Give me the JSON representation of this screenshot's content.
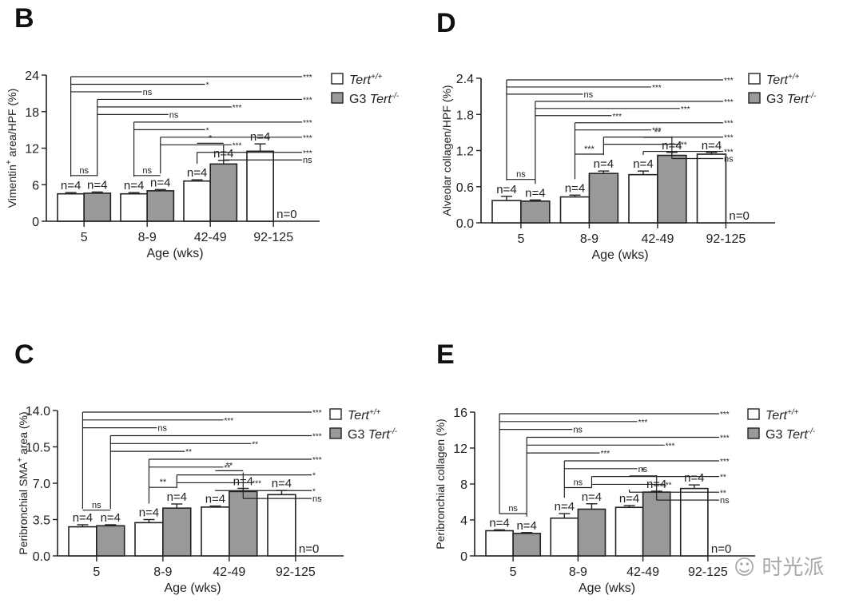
{
  "watermark": "时光派",
  "legend": {
    "wt": "Tert",
    "wt_sup": "+/+",
    "ko_prefix": "G3 ",
    "ko": "Tert",
    "ko_sup": "-/-"
  },
  "colors": {
    "wt": "#ffffff",
    "ko": "#999999",
    "stroke": "#222222"
  },
  "chart_data": [
    {
      "panel": "B",
      "type": "bar",
      "ylabel": "Vimentin+ area/HPF (%)",
      "ylabel_main": "Vimentin",
      "ylabel_sup": "+",
      "ylabel_rest": " area/HPF (%)",
      "xlabel": "Age (wks)",
      "categories": [
        "5",
        "8-9",
        "42-49",
        "92-125"
      ],
      "ylim": [
        0,
        24
      ],
      "yticks": [
        "0",
        "6",
        "12",
        "18",
        "24"
      ],
      "ytick_values": [
        0,
        6,
        12,
        18,
        24
      ],
      "series": [
        {
          "name": "Tert+/+",
          "values": [
            4.5,
            4.5,
            6.6,
            11.5
          ],
          "errors": [
            0.2,
            0.2,
            0.2,
            1.2
          ],
          "n": [
            "n=4",
            "n=4",
            "n=4",
            "n=4"
          ]
        },
        {
          "name": "G3 Tert-/-",
          "values": [
            4.6,
            5.0,
            9.4,
            null
          ],
          "errors": [
            0.2,
            0.2,
            0.6,
            null
          ],
          "n": [
            "n=4",
            "n=4",
            "n=4",
            "n=0"
          ]
        }
      ],
      "comparisons": [
        {
          "from": [
            0,
            0
          ],
          "to": [
            3,
            0
          ],
          "label": "***"
        },
        {
          "from": [
            0,
            0
          ],
          "to": [
            2,
            0
          ],
          "label": "*"
        },
        {
          "from": [
            0,
            0
          ],
          "to": [
            1,
            0
          ],
          "label": "ns"
        },
        {
          "from": [
            0,
            1
          ],
          "to": [
            3,
            0
          ],
          "label": "***"
        },
        {
          "from": [
            0,
            1
          ],
          "to": [
            2,
            1
          ],
          "label": "***"
        },
        {
          "from": [
            0,
            1
          ],
          "to": [
            1,
            1
          ],
          "label": "ns"
        },
        {
          "from": [
            1,
            0
          ],
          "to": [
            3,
            0
          ],
          "label": "***"
        },
        {
          "from": [
            1,
            0
          ],
          "to": [
            2,
            0
          ],
          "label": "*"
        },
        {
          "from": [
            1,
            1
          ],
          "to": [
            3,
            0
          ],
          "label": "***"
        },
        {
          "from": [
            1,
            1
          ],
          "to": [
            2,
            1
          ],
          "label": "***"
        },
        {
          "from": [
            2,
            0
          ],
          "to": [
            3,
            0
          ],
          "label": "***"
        },
        {
          "from": [
            2,
            1
          ],
          "to": [
            3,
            0
          ],
          "label": "ns"
        }
      ],
      "pair_comparisons": [
        {
          "group": 0,
          "label": "ns",
          "y": 7.5
        },
        {
          "group": 1,
          "label": "ns",
          "y": 7.5
        },
        {
          "group": 2,
          "label": "*",
          "y": 12.8
        }
      ]
    },
    {
      "panel": "D",
      "type": "bar",
      "ylabel": "Alveolar collagen/HPF (%)",
      "ylabel_main": "Alveolar collagen/HPF (%)",
      "ylabel_sup": "",
      "ylabel_rest": "",
      "xlabel": "Age (wks)",
      "categories": [
        "5",
        "8-9",
        "42-49",
        "92-125"
      ],
      "ylim": [
        0,
        2.4
      ],
      "yticks": [
        "0.0",
        "0.6",
        "1.2",
        "1.8",
        "2.4"
      ],
      "ytick_values": [
        0,
        0.6,
        1.2,
        1.8,
        2.4
      ],
      "series": [
        {
          "name": "Tert+/+",
          "values": [
            0.37,
            0.43,
            0.8,
            1.14
          ],
          "errors": [
            0.07,
            0.03,
            0.06,
            0.03
          ],
          "n": [
            "n=4",
            "n=4",
            "n=4",
            "n=4"
          ]
        },
        {
          "name": "G3 Tert-/-",
          "values": [
            0.36,
            0.82,
            1.12,
            null
          ],
          "errors": [
            0.02,
            0.04,
            0.05,
            null
          ],
          "n": [
            "n=4",
            "n=4",
            "n=4",
            "n=0"
          ]
        }
      ],
      "comparisons": [
        {
          "from": [
            0,
            0
          ],
          "to": [
            3,
            0
          ],
          "label": "***"
        },
        {
          "from": [
            0,
            0
          ],
          "to": [
            2,
            0
          ],
          "label": "***"
        },
        {
          "from": [
            0,
            0
          ],
          "to": [
            1,
            0
          ],
          "label": "ns"
        },
        {
          "from": [
            0,
            1
          ],
          "to": [
            3,
            0
          ],
          "label": "***"
        },
        {
          "from": [
            0,
            1
          ],
          "to": [
            2,
            1
          ],
          "label": "***"
        },
        {
          "from": [
            0,
            1
          ],
          "to": [
            1,
            1
          ],
          "label": "***"
        },
        {
          "from": [
            1,
            0
          ],
          "to": [
            3,
            0
          ],
          "label": "***"
        },
        {
          "from": [
            1,
            0
          ],
          "to": [
            2,
            0
          ],
          "label": "***"
        },
        {
          "from": [
            1,
            1
          ],
          "to": [
            3,
            0
          ],
          "label": "***"
        },
        {
          "from": [
            1,
            1
          ],
          "to": [
            2,
            1
          ],
          "label": "**"
        },
        {
          "from": [
            2,
            0
          ],
          "to": [
            3,
            0
          ],
          "label": "***"
        },
        {
          "from": [
            2,
            1
          ],
          "to": [
            3,
            0
          ],
          "label": "ns"
        }
      ],
      "pair_comparisons": [
        {
          "group": 0,
          "label": "ns",
          "y": 0.72
        },
        {
          "group": 1,
          "label": "***",
          "y": 1.14
        },
        {
          "group": 2,
          "label": "**",
          "y": 1.42
        }
      ]
    },
    {
      "panel": "C",
      "type": "bar",
      "ylabel": "Peribronchial SMA+ area (%)",
      "ylabel_main": "Peribronchial SMA",
      "ylabel_sup": "+",
      "ylabel_rest": " area (%)",
      "xlabel": "Age (wks)",
      "categories": [
        "5",
        "8-9",
        "42-49",
        "92-125"
      ],
      "ylim": [
        0,
        14
      ],
      "yticks": [
        "0.0",
        "3.5",
        "7.0",
        "10.5",
        "14.0"
      ],
      "ytick_values": [
        0,
        3.5,
        7,
        10.5,
        14
      ],
      "series": [
        {
          "name": "Tert+/+",
          "values": [
            2.8,
            3.2,
            4.7,
            5.9
          ],
          "errors": [
            0.2,
            0.3,
            0.1,
            0.4
          ],
          "n": [
            "n=4",
            "n=4",
            "n=4",
            "n=4"
          ]
        },
        {
          "name": "G3 Tert-/-",
          "values": [
            2.9,
            4.6,
            6.2,
            null
          ],
          "errors": [
            0.1,
            0.4,
            0.3,
            null
          ],
          "n": [
            "n=4",
            "n=4",
            "n=4",
            "n=0"
          ]
        }
      ],
      "comparisons": [
        {
          "from": [
            0,
            0
          ],
          "to": [
            3,
            0
          ],
          "label": "***"
        },
        {
          "from": [
            0,
            0
          ],
          "to": [
            2,
            0
          ],
          "label": "***"
        },
        {
          "from": [
            0,
            0
          ],
          "to": [
            1,
            0
          ],
          "label": "ns"
        },
        {
          "from": [
            0,
            1
          ],
          "to": [
            3,
            0
          ],
          "label": "***"
        },
        {
          "from": [
            0,
            1
          ],
          "to": [
            2,
            1
          ],
          "label": "**"
        },
        {
          "from": [
            0,
            1
          ],
          "to": [
            1,
            1
          ],
          "label": "**"
        },
        {
          "from": [
            1,
            0
          ],
          "to": [
            3,
            0
          ],
          "label": "***"
        },
        {
          "from": [
            1,
            0
          ],
          "to": [
            2,
            0
          ],
          "label": "**"
        },
        {
          "from": [
            1,
            1
          ],
          "to": [
            3,
            0
          ],
          "label": "*"
        },
        {
          "from": [
            1,
            1
          ],
          "to": [
            2,
            1
          ],
          "label": "***"
        },
        {
          "from": [
            2,
            0
          ],
          "to": [
            3,
            0
          ],
          "label": "*"
        },
        {
          "from": [
            2,
            1
          ],
          "to": [
            3,
            0
          ],
          "label": "ns"
        }
      ],
      "pair_comparisons": [
        {
          "group": 0,
          "label": "ns",
          "y": 4.4
        },
        {
          "group": 1,
          "label": "**",
          "y": 6.6
        },
        {
          "group": 2,
          "label": "**",
          "y": 8.2
        }
      ]
    },
    {
      "panel": "E",
      "type": "bar",
      "ylabel": "Peribronchial collagen (%)",
      "ylabel_main": "Peribronchial collagen (%)",
      "ylabel_sup": "",
      "ylabel_rest": "",
      "xlabel": "Age (wks)",
      "categories": [
        "5",
        "8-9",
        "42-49",
        "92-125"
      ],
      "ylim": [
        0,
        16
      ],
      "yticks": [
        "0",
        "4",
        "8",
        "12",
        "16"
      ],
      "ytick_values": [
        0,
        4,
        8,
        12,
        16
      ],
      "series": [
        {
          "name": "Tert+/+",
          "values": [
            2.8,
            4.2,
            5.4,
            7.5
          ],
          "errors": [
            0.1,
            0.5,
            0.2,
            0.4
          ],
          "n": [
            "n=4",
            "n=4",
            "n=4",
            "n=4"
          ]
        },
        {
          "name": "G3 Tert-/-",
          "values": [
            2.5,
            5.2,
            7.1,
            null
          ],
          "errors": [
            0.1,
            0.6,
            0.1,
            null
          ],
          "n": [
            "n=4",
            "n=4",
            "n=4",
            "n=0"
          ]
        }
      ],
      "comparisons": [
        {
          "from": [
            0,
            0
          ],
          "to": [
            3,
            0
          ],
          "label": "***"
        },
        {
          "from": [
            0,
            0
          ],
          "to": [
            2,
            0
          ],
          "label": "***"
        },
        {
          "from": [
            0,
            0
          ],
          "to": [
            1,
            0
          ],
          "label": "ns"
        },
        {
          "from": [
            0,
            1
          ],
          "to": [
            3,
            0
          ],
          "label": "***"
        },
        {
          "from": [
            0,
            1
          ],
          "to": [
            2,
            1
          ],
          "label": "***"
        },
        {
          "from": [
            0,
            1
          ],
          "to": [
            1,
            1
          ],
          "label": "***"
        },
        {
          "from": [
            1,
            0
          ],
          "to": [
            3,
            0
          ],
          "label": "***"
        },
        {
          "from": [
            1,
            0
          ],
          "to": [
            2,
            0
          ],
          "label": "ns"
        },
        {
          "from": [
            1,
            1
          ],
          "to": [
            3,
            0
          ],
          "label": "**"
        },
        {
          "from": [
            1,
            1
          ],
          "to": [
            2,
            1
          ],
          "label": "**"
        },
        {
          "from": [
            2,
            0
          ],
          "to": [
            3,
            0
          ],
          "label": "**"
        },
        {
          "from": [
            2,
            1
          ],
          "to": [
            3,
            0
          ],
          "label": "ns"
        }
      ],
      "pair_comparisons": [
        {
          "group": 0,
          "label": "ns",
          "y": 4.7
        },
        {
          "group": 1,
          "label": "ns",
          "y": 7.6
        },
        {
          "group": 2,
          "label": "*",
          "y": 8.9
        }
      ]
    }
  ]
}
